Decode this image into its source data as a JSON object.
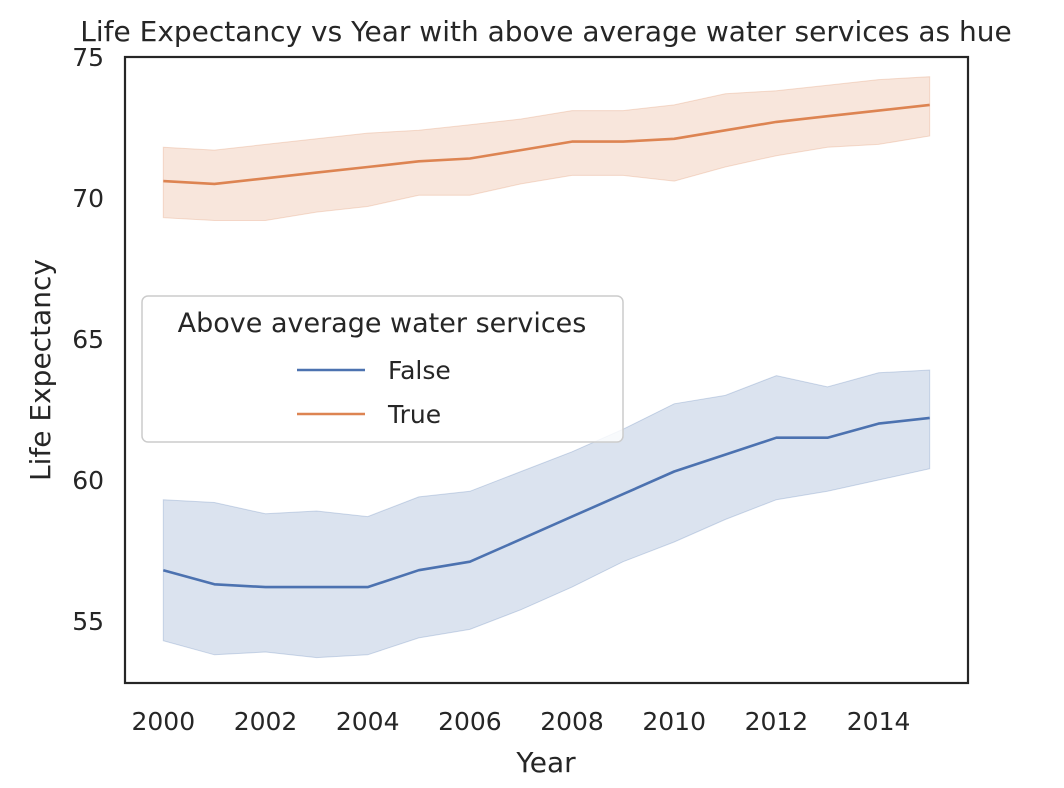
{
  "chart_data": {
    "type": "line",
    "title": "Life Expectancy vs Year with above average water services as hue",
    "xlabel": "Year",
    "ylabel": "Life Expectancy",
    "xlim": [
      1999.25,
      2015.75
    ],
    "ylim": [
      52.8,
      75.0
    ],
    "x_ticks": [
      2000,
      2002,
      2004,
      2006,
      2008,
      2010,
      2012,
      2014
    ],
    "y_ticks": [
      55,
      60,
      65,
      70,
      75
    ],
    "grid": false,
    "legend": {
      "title": "Above average water services",
      "placement": "center-left"
    },
    "x": [
      2000,
      2001,
      2002,
      2003,
      2004,
      2005,
      2006,
      2007,
      2008,
      2009,
      2010,
      2011,
      2012,
      2013,
      2014,
      2015
    ],
    "series": [
      {
        "name": "False",
        "color": "#4c72b0",
        "values": [
          56.8,
          56.3,
          56.2,
          56.2,
          56.2,
          56.8,
          57.1,
          57.9,
          58.7,
          59.5,
          60.3,
          60.9,
          61.5,
          61.5,
          62.0,
          62.2
        ],
        "ci_low": [
          54.3,
          53.8,
          53.9,
          53.7,
          53.8,
          54.4,
          54.7,
          55.4,
          56.2,
          57.1,
          57.8,
          58.6,
          59.3,
          59.6,
          60.0,
          60.4
        ],
        "ci_high": [
          59.3,
          59.2,
          58.8,
          58.9,
          58.7,
          59.4,
          59.6,
          60.3,
          61.0,
          61.8,
          62.7,
          63.0,
          63.7,
          63.3,
          63.8,
          63.9
        ]
      },
      {
        "name": "True",
        "color": "#dd8452",
        "values": [
          70.6,
          70.5,
          70.7,
          70.9,
          71.1,
          71.3,
          71.4,
          71.7,
          72.0,
          72.0,
          72.1,
          72.4,
          72.7,
          72.9,
          73.1,
          73.3
        ],
        "ci_low": [
          69.3,
          69.2,
          69.2,
          69.5,
          69.7,
          70.1,
          70.1,
          70.5,
          70.8,
          70.8,
          70.6,
          71.1,
          71.5,
          71.8,
          71.9,
          72.2
        ],
        "ci_high": [
          71.8,
          71.7,
          71.9,
          72.1,
          72.3,
          72.4,
          72.6,
          72.8,
          73.1,
          73.1,
          73.3,
          73.7,
          73.8,
          74.0,
          74.2,
          74.3
        ]
      }
    ]
  }
}
